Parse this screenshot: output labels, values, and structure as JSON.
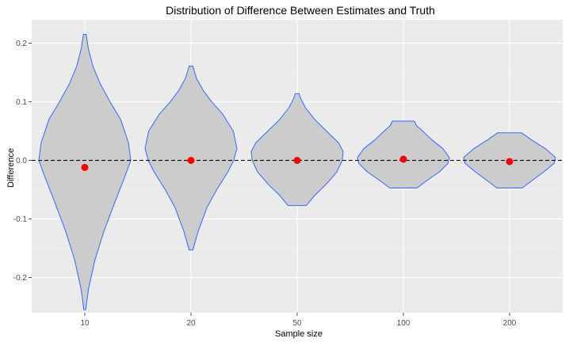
{
  "chart_data": {
    "type": "violin",
    "title": "Distribution of Difference Between Estimates and Truth",
    "xlabel": "Sample size",
    "ylabel": "Difference",
    "categories": [
      "10",
      "20",
      "50",
      "100",
      "200"
    ],
    "ylim": [
      -0.26,
      0.24
    ],
    "yticks": [
      -0.2,
      -0.1,
      0.0,
      0.1,
      0.2
    ],
    "ytick_labels": [
      "-0.2",
      "-0.1",
      "0.0",
      "0.1",
      "0.2"
    ],
    "reference_line": {
      "y": 0.0,
      "style": "dashed",
      "color": "#000000"
    },
    "grid": true,
    "series": [
      {
        "category": "10",
        "range": [
          -0.255,
          0.215
        ],
        "mean": -0.012,
        "profile": [
          [
            -0.255,
            0.02
          ],
          [
            -0.22,
            0.08
          ],
          [
            -0.17,
            0.22
          ],
          [
            -0.12,
            0.42
          ],
          [
            -0.07,
            0.66
          ],
          [
            -0.03,
            0.86
          ],
          [
            0.0,
            1.0
          ],
          [
            0.03,
            0.95
          ],
          [
            0.07,
            0.78
          ],
          [
            0.1,
            0.55
          ],
          [
            0.13,
            0.34
          ],
          [
            0.16,
            0.18
          ],
          [
            0.19,
            0.08
          ],
          [
            0.215,
            0.03
          ]
        ]
      },
      {
        "category": "20",
        "range": [
          -0.153,
          0.161
        ],
        "mean": 0.0,
        "profile": [
          [
            -0.153,
            0.04
          ],
          [
            -0.12,
            0.16
          ],
          [
            -0.08,
            0.35
          ],
          [
            -0.05,
            0.56
          ],
          [
            -0.02,
            0.8
          ],
          [
            0.0,
            0.93
          ],
          [
            0.02,
            1.0
          ],
          [
            0.05,
            0.92
          ],
          [
            0.08,
            0.68
          ],
          [
            0.1,
            0.45
          ],
          [
            0.12,
            0.26
          ],
          [
            0.14,
            0.12
          ],
          [
            0.161,
            0.04
          ]
        ]
      },
      {
        "category": "50",
        "range": [
          -0.077,
          0.114
        ],
        "mean": 0.0,
        "profile": [
          [
            -0.077,
            0.2
          ],
          [
            -0.06,
            0.38
          ],
          [
            -0.04,
            0.64
          ],
          [
            -0.02,
            0.86
          ],
          [
            0.0,
            0.98
          ],
          [
            0.015,
            1.0
          ],
          [
            0.03,
            0.9
          ],
          [
            0.05,
            0.64
          ],
          [
            0.07,
            0.38
          ],
          [
            0.09,
            0.18
          ],
          [
            0.105,
            0.08
          ],
          [
            0.114,
            0.04
          ]
        ]
      },
      {
        "category": "100",
        "range": [
          -0.047,
          0.067
        ],
        "mean": 0.002,
        "profile": [
          [
            -0.047,
            0.3
          ],
          [
            -0.035,
            0.5
          ],
          [
            -0.02,
            0.78
          ],
          [
            -0.005,
            0.97
          ],
          [
            0.005,
            1.0
          ],
          [
            0.02,
            0.86
          ],
          [
            0.035,
            0.62
          ],
          [
            0.05,
            0.42
          ],
          [
            0.06,
            0.28
          ],
          [
            0.067,
            0.24
          ]
        ]
      },
      {
        "category": "200",
        "range": [
          -0.047,
          0.047
        ],
        "mean": -0.002,
        "profile": [
          [
            -0.047,
            0.28
          ],
          [
            -0.035,
            0.48
          ],
          [
            -0.02,
            0.74
          ],
          [
            -0.005,
            0.97
          ],
          [
            0.005,
            1.0
          ],
          [
            0.02,
            0.78
          ],
          [
            0.035,
            0.48
          ],
          [
            0.047,
            0.26
          ]
        ]
      }
    ],
    "colors": {
      "panel_background": "#ebebeb",
      "grid_major": "#ffffff",
      "violin_fill": "#cccccc",
      "violin_outline": "#3366ff",
      "mean_point": "#ff0000",
      "reference_line": "#000000"
    }
  }
}
